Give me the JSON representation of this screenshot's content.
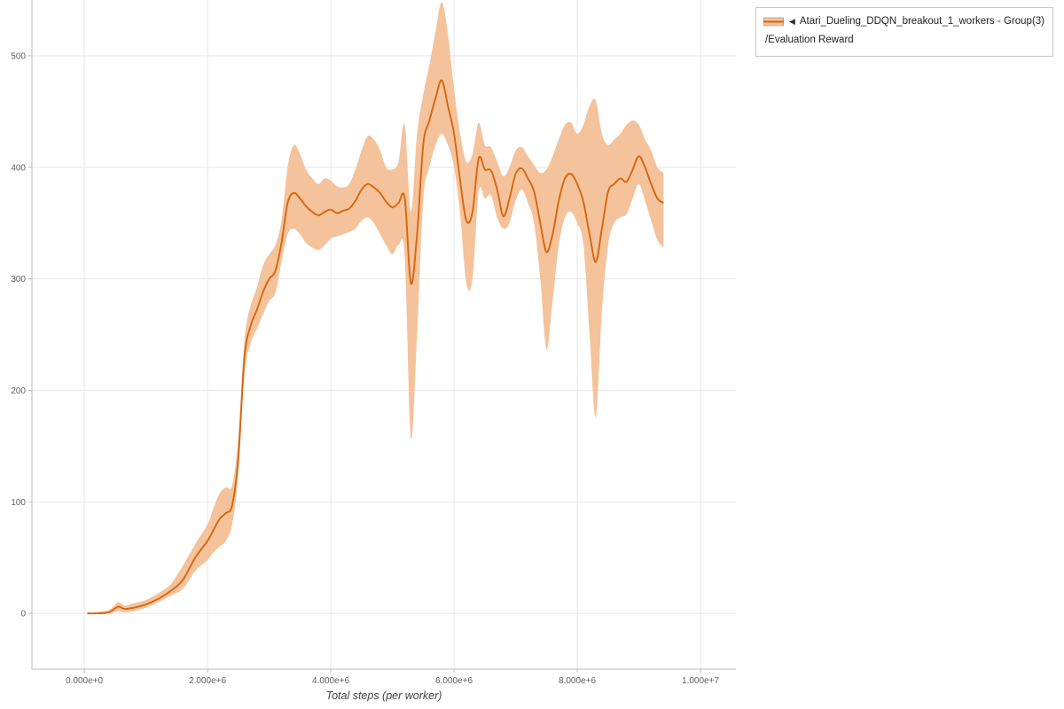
{
  "legend": {
    "collapse_icon": "◀",
    "series_label": "Atari_Dueling_DDQN_breakout_1_workers - Group(3)",
    "metric_label": "/Evaluation Reward"
  },
  "chart_data": {
    "type": "line",
    "title": "",
    "xlabel": "Total steps (per worker)",
    "ylabel": "",
    "grid": true,
    "legend_position": "top-right",
    "xlim": [
      -850000,
      10575000
    ],
    "ylim": [
      -50,
      550
    ],
    "line_color": "#d96510",
    "band_color": "#f4c39b",
    "grid_color": "#e7e7e7",
    "spine_color": "#bbbbbb",
    "tick_color": "#5f5f5f",
    "x_ticks": [
      {
        "value": 0,
        "label": "0.000e+0"
      },
      {
        "value": 2000000,
        "label": "2.000e+6"
      },
      {
        "value": 4000000,
        "label": "4.000e+6"
      },
      {
        "value": 6000000,
        "label": "6.000e+6"
      },
      {
        "value": 8000000,
        "label": "8.000e+6"
      },
      {
        "value": 10000000,
        "label": "1.000e+7"
      }
    ],
    "y_ticks": [
      0,
      100,
      200,
      300,
      400,
      500
    ],
    "series": [
      {
        "name": "Atari_Dueling_DDQN_breakout_1_workers - Group(3)/Evaluation Reward",
        "x_millions": [
          0.05,
          0.2,
          0.4,
          0.55,
          0.65,
          0.8,
          1.0,
          1.2,
          1.4,
          1.6,
          1.8,
          2.0,
          2.1,
          2.2,
          2.3,
          2.4,
          2.5,
          2.6,
          2.7,
          2.8,
          2.9,
          3.0,
          3.1,
          3.2,
          3.3,
          3.4,
          3.5,
          3.6,
          3.7,
          3.8,
          3.9,
          4.0,
          4.1,
          4.2,
          4.3,
          4.4,
          4.5,
          4.6,
          4.7,
          4.8,
          4.9,
          5.0,
          5.1,
          5.2,
          5.3,
          5.4,
          5.5,
          5.6,
          5.7,
          5.8,
          5.9,
          6.0,
          6.1,
          6.2,
          6.3,
          6.4,
          6.5,
          6.6,
          6.7,
          6.8,
          6.9,
          7.0,
          7.1,
          7.2,
          7.3,
          7.4,
          7.5,
          7.6,
          7.7,
          7.8,
          7.9,
          8.0,
          8.1,
          8.2,
          8.3,
          8.4,
          8.5,
          8.6,
          8.7,
          8.8,
          8.9,
          9.0,
          9.1,
          9.2,
          9.3,
          9.4
        ],
        "mean": [
          0,
          0,
          1,
          6,
          4,
          5,
          8,
          13,
          20,
          30,
          50,
          65,
          75,
          85,
          90,
          97,
          140,
          230,
          258,
          272,
          288,
          300,
          307,
          332,
          368,
          377,
          372,
          365,
          360,
          357,
          360,
          362,
          359,
          361,
          363,
          370,
          380,
          385,
          382,
          377,
          369,
          364,
          368,
          372,
          296,
          340,
          420,
          442,
          462,
          478,
          455,
          430,
          388,
          352,
          360,
          408,
          398,
          397,
          380,
          356,
          372,
          394,
          399,
          390,
          378,
          350,
          324,
          340,
          370,
          390,
          394,
          385,
          369,
          340,
          315,
          345,
          378,
          385,
          390,
          387,
          398,
          410,
          400,
          385,
          372,
          368
        ],
        "lower": [
          0,
          0,
          0,
          2,
          1,
          2,
          5,
          10,
          16,
          22,
          38,
          48,
          55,
          60,
          65,
          80,
          125,
          215,
          242,
          255,
          268,
          280,
          287,
          315,
          340,
          345,
          340,
          332,
          328,
          326,
          330,
          336,
          338,
          340,
          342,
          345,
          352,
          355,
          350,
          340,
          330,
          322,
          330,
          320,
          157,
          250,
          370,
          400,
          420,
          430,
          420,
          400,
          358,
          296,
          300,
          378,
          372,
          375,
          355,
          345,
          350,
          370,
          380,
          368,
          350,
          300,
          237,
          280,
          330,
          355,
          360,
          350,
          330,
          250,
          176,
          270,
          330,
          350,
          355,
          358,
          372,
          385,
          370,
          352,
          335,
          328
        ],
        "upper": [
          0,
          1,
          3,
          10,
          7,
          9,
          12,
          18,
          26,
          43,
          62,
          80,
          95,
          108,
          113,
          115,
          158,
          246,
          276,
          292,
          312,
          322,
          330,
          352,
          400,
          420,
          412,
          398,
          390,
          385,
          390,
          388,
          383,
          382,
          385,
          398,
          415,
          428,
          425,
          415,
          400,
          398,
          405,
          438,
          360,
          430,
          465,
          492,
          522,
          548,
          520,
          470,
          430,
          405,
          412,
          440,
          420,
          418,
          405,
          392,
          400,
          415,
          418,
          410,
          402,
          395,
          398,
          410,
          425,
          438,
          440,
          430,
          438,
          455,
          460,
          430,
          420,
          425,
          430,
          438,
          442,
          438,
          425,
          415,
          400,
          395
        ]
      }
    ]
  }
}
